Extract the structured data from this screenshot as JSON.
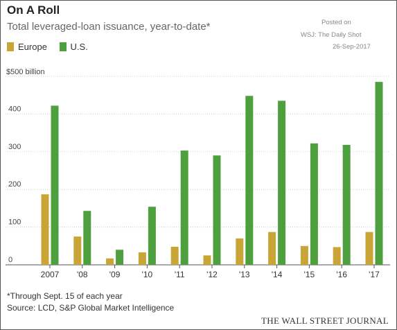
{
  "header": {
    "title": "On A Roll",
    "subtitle": "Total leveraged-loan issuance, year-to-date*"
  },
  "stamp": {
    "line1": "Posted on",
    "line2": "WSJ: The Daily Shot",
    "line3": "26-Sep-2017"
  },
  "footer": {
    "footnote": "*Through Sept. 15 of each year",
    "source": "Source: LCD, S&P Global Market Intelligence",
    "publisher": "THE WALL STREET JOURNAL"
  },
  "colors": {
    "europe": "#c9a537",
    "us": "#4da03d",
    "grid": "#d0d0d0",
    "axis": "#555555"
  },
  "chart_data": {
    "type": "bar",
    "title": "On A Roll",
    "subtitle": "Total leveraged-loan issuance, year-to-date*",
    "unit_label": "$500 billion",
    "categories": [
      "2007",
      "'08",
      "'09",
      "'10",
      "'11",
      "'12",
      "'13",
      "'14",
      "'15",
      "'16",
      "'17"
    ],
    "series": [
      {
        "name": "Europe",
        "color": "#c9a537",
        "values": [
          187,
          75,
          17,
          33,
          48,
          25,
          70,
          87,
          50,
          47,
          87
        ]
      },
      {
        "name": "U.S.",
        "color": "#4da03d",
        "values": [
          422,
          143,
          40,
          154,
          303,
          290,
          448,
          435,
          322,
          318,
          485
        ]
      }
    ],
    "ylim": [
      0,
      500
    ],
    "yticks": [
      "0",
      "100",
      "200",
      "300",
      "400"
    ],
    "grid": true,
    "legend": "top-left"
  }
}
